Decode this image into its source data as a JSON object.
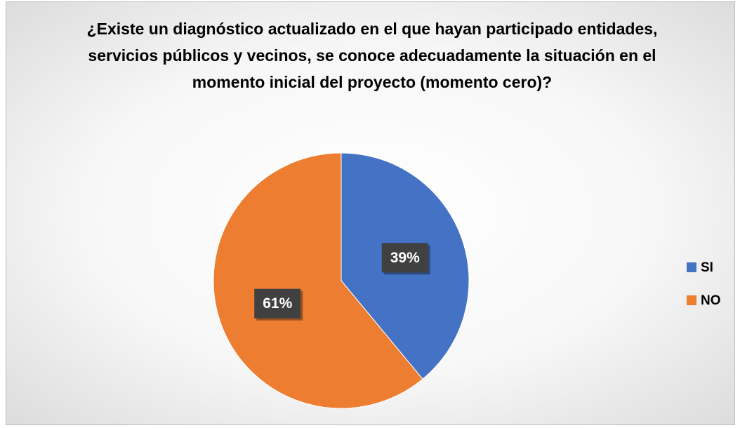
{
  "chart_data": {
    "type": "pie",
    "title": "¿Existe un diagnóstico actualizado en el que hayan participado entidades, servicios públicos y vecinos, se conoce adecuadamente la situación en el momento inicial del proyecto (momento cero)?",
    "categories": [
      "SI",
      "NO"
    ],
    "values": [
      39,
      61
    ],
    "value_labels": [
      "39%",
      "61%"
    ],
    "colors": [
      "#4472c4",
      "#ed7d31"
    ],
    "legend": "right"
  }
}
